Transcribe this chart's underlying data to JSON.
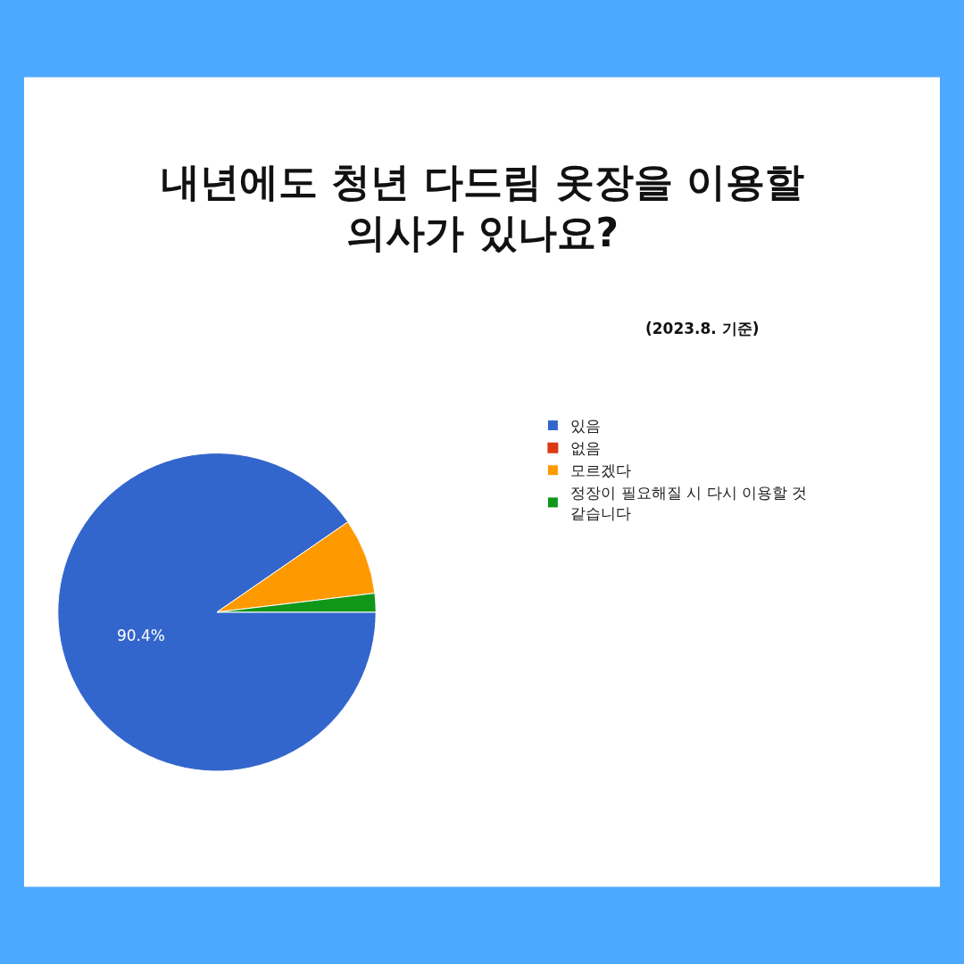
{
  "chart_data": {
    "type": "pie",
    "title": "내년에도 청년 다드림 옷장을 이용할\n의사가 있나요?",
    "subtitle": "(2023.8. 기준)",
    "categories": [
      "있음",
      "없음",
      "모르겠다",
      "정장이 필요해질 시 다시 이용할 것 같습니다"
    ],
    "values": [
      90.4,
      0,
      7.7,
      1.9
    ],
    "colors": [
      "#3366cc",
      "#dc3912",
      "#ff9900",
      "#109618"
    ],
    "value_labels": [
      "90.4%",
      null,
      null,
      null
    ],
    "legend": "right"
  }
}
